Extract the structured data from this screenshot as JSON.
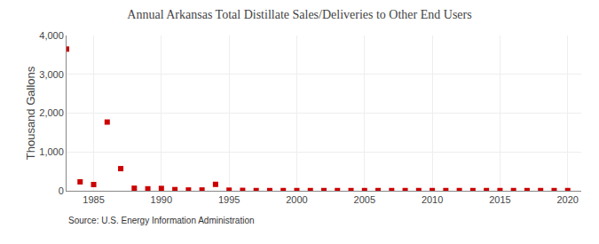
{
  "chart_data": {
    "type": "scatter",
    "title": "Annual Arkansas Total Distillate Sales/Deliveries to Other End Users",
    "ylabel": "Thousand Gallons",
    "annotations": [
      "Source: U.S. Energy Information Administration"
    ],
    "color": "#cc0000",
    "marker": "square",
    "grid": true,
    "xlim": [
      1983,
      2021
    ],
    "xticks": [
      1985,
      1990,
      1995,
      2000,
      2005,
      2010,
      2015,
      2020
    ],
    "ylim": [
      0,
      4000
    ],
    "yticks": [
      0,
      {
        "value": 1000,
        "label": "1,000"
      },
      {
        "value": 2000,
        "label": "2,000"
      },
      {
        "value": 3000,
        "label": "3,000"
      },
      {
        "value": 4000,
        "label": "4,000"
      }
    ],
    "x": [
      1983,
      1984,
      1985,
      1986,
      1987,
      1988,
      1989,
      1990,
      1991,
      1992,
      1993,
      1994,
      1995,
      1996,
      1997,
      1998,
      1999,
      2000,
      2001,
      2002,
      2003,
      2004,
      2005,
      2006,
      2007,
      2008,
      2009,
      2010,
      2011,
      2012,
      2013,
      2014,
      2015,
      2016,
      2017,
      2018,
      2019,
      2020
    ],
    "values": [
      3650,
      230,
      160,
      1770,
      570,
      65,
      50,
      60,
      30,
      20,
      20,
      165,
      15,
      10,
      5,
      5,
      5,
      5,
      5,
      5,
      5,
      5,
      5,
      5,
      5,
      5,
      5,
      5,
      5,
      5,
      5,
      5,
      5,
      5,
      5,
      5,
      5,
      5
    ]
  }
}
